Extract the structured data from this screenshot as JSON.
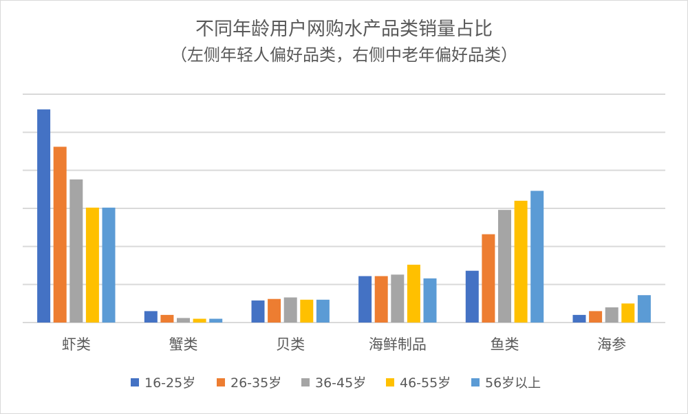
{
  "chart_data": {
    "type": "bar",
    "title": "不同年龄用户网购水产品类销量占比",
    "subtitle": "（左侧年轻人偏好品类，右侧中老年偏好品类）",
    "categories": [
      "虾类",
      "蟹类",
      "贝类",
      "海鲜制品",
      "鱼类",
      "海参"
    ],
    "series": [
      {
        "name": "16-25岁",
        "color": "#4472c4",
        "values": [
          28,
          1.5,
          2.9,
          6.1,
          6.8,
          1.0
        ]
      },
      {
        "name": "26-35岁",
        "color": "#ed7d31",
        "values": [
          23.1,
          1.0,
          3.1,
          6.1,
          11.6,
          1.5
        ]
      },
      {
        "name": "36-45岁",
        "color": "#a5a5a5",
        "values": [
          18.8,
          0.6,
          3.3,
          6.3,
          14.8,
          2.0
        ]
      },
      {
        "name": "46-55岁",
        "color": "#ffc000",
        "values": [
          15.1,
          0.5,
          3.0,
          7.6,
          16.0,
          2.5
        ]
      },
      {
        "name": "56岁以上",
        "color": "#5b9bd5",
        "values": [
          15.1,
          0.5,
          3.0,
          5.8,
          17.3,
          3.6
        ]
      }
    ],
    "ylim": [
      0,
      30
    ],
    "ytick_step": 5,
    "grid": true,
    "legend": "bottom",
    "xlabel": "",
    "ylabel": ""
  }
}
